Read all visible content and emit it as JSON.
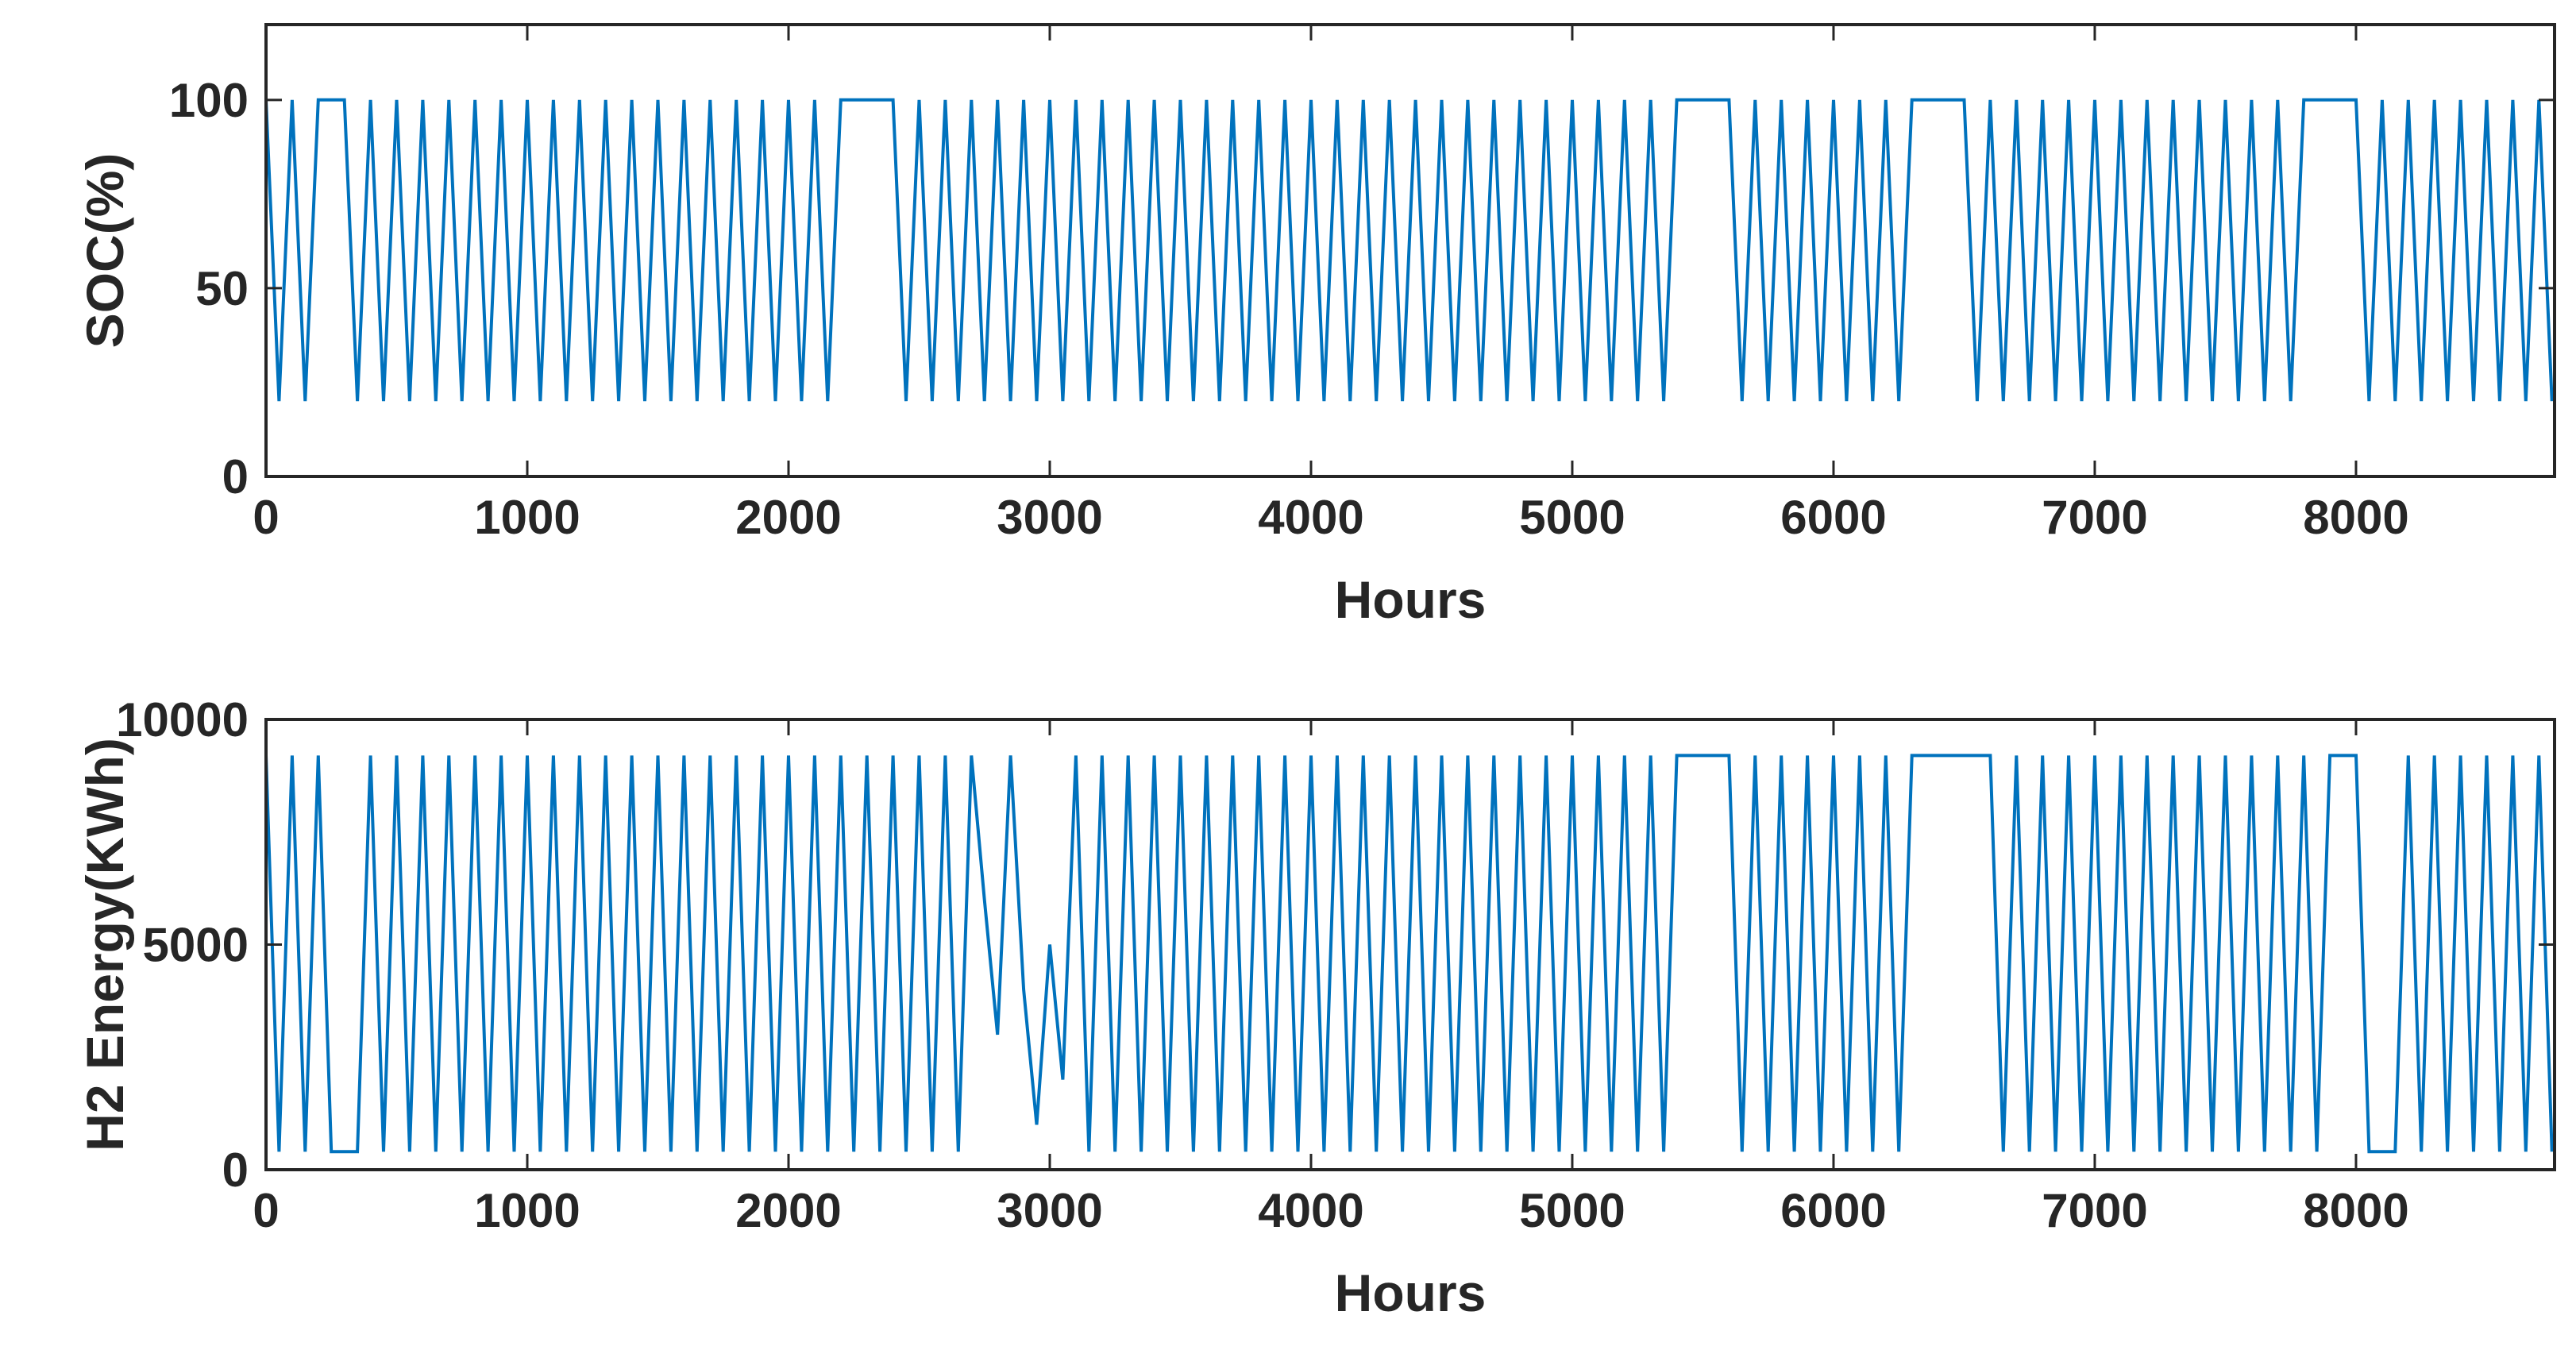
{
  "chart_data": [
    {
      "type": "line",
      "xlabel": "Hours",
      "ylabel": "SOC(%)",
      "color": "#0072bd",
      "xlim": [
        0,
        8760
      ],
      "xticks": [
        0,
        1000,
        2000,
        3000,
        4000,
        5000,
        6000,
        7000,
        8000
      ],
      "ylim": [
        0,
        120
      ],
      "yticks": [
        0,
        50,
        100
      ],
      "x": [
        0,
        50,
        100,
        150,
        200,
        250,
        300,
        350,
        400,
        450,
        500,
        550,
        600,
        650,
        700,
        750,
        800,
        850,
        900,
        950,
        1000,
        1050,
        1100,
        1150,
        1200,
        1250,
        1300,
        1350,
        1400,
        1450,
        1500,
        1550,
        1600,
        1650,
        1700,
        1750,
        1800,
        1850,
        1900,
        1950,
        2000,
        2050,
        2100,
        2150,
        2200,
        2250,
        2300,
        2350,
        2400,
        2450,
        2500,
        2550,
        2600,
        2650,
        2700,
        2750,
        2800,
        2850,
        2900,
        2950,
        3000,
        3050,
        3100,
        3150,
        3200,
        3250,
        3300,
        3350,
        3400,
        3450,
        3500,
        3550,
        3600,
        3650,
        3700,
        3750,
        3800,
        3850,
        3900,
        3950,
        4000,
        4050,
        4100,
        4150,
        4200,
        4250,
        4300,
        4350,
        4400,
        4450,
        4500,
        4550,
        4600,
        4650,
        4700,
        4750,
        4800,
        4850,
        4900,
        4950,
        5000,
        5050,
        5100,
        5150,
        5200,
        5250,
        5300,
        5350,
        5400,
        5450,
        5500,
        5550,
        5600,
        5650,
        5700,
        5750,
        5800,
        5850,
        5900,
        5950,
        6000,
        6050,
        6100,
        6150,
        6200,
        6250,
        6300,
        6350,
        6400,
        6450,
        6500,
        6550,
        6600,
        6650,
        6700,
        6750,
        6800,
        6850,
        6900,
        6950,
        7000,
        7050,
        7100,
        7150,
        7200,
        7250,
        7300,
        7350,
        7400,
        7450,
        7500,
        7550,
        7600,
        7650,
        7700,
        7750,
        7800,
        7850,
        7900,
        7950,
        8000,
        8050,
        8100,
        8150,
        8200,
        8250,
        8300,
        8350,
        8400,
        8450,
        8500,
        8550,
        8600,
        8650,
        8700,
        8750
      ],
      "values": [
        100,
        20,
        100,
        20,
        100,
        100,
        100,
        20,
        100,
        20,
        100,
        20,
        100,
        20,
        100,
        20,
        100,
        20,
        100,
        20,
        100,
        20,
        100,
        20,
        100,
        20,
        100,
        20,
        100,
        20,
        100,
        20,
        100,
        20,
        100,
        20,
        100,
        20,
        100,
        20,
        100,
        20,
        100,
        20,
        100,
        100,
        100,
        100,
        100,
        20,
        100,
        20,
        100,
        20,
        100,
        20,
        100,
        20,
        100,
        20,
        100,
        20,
        100,
        20,
        100,
        20,
        100,
        20,
        100,
        20,
        100,
        20,
        100,
        20,
        100,
        20,
        100,
        20,
        100,
        20,
        100,
        20,
        100,
        20,
        100,
        20,
        100,
        20,
        100,
        20,
        100,
        20,
        100,
        20,
        100,
        20,
        100,
        20,
        100,
        20,
        100,
        20,
        100,
        20,
        100,
        20,
        100,
        20,
        100,
        100,
        100,
        100,
        100,
        20,
        100,
        20,
        100,
        20,
        100,
        20,
        100,
        20,
        100,
        20,
        100,
        20,
        100,
        100,
        100,
        100,
        100,
        20,
        100,
        20,
        100,
        20,
        100,
        20,
        100,
        20,
        100,
        20,
        100,
        20,
        100,
        20,
        100,
        20,
        100,
        20,
        100,
        20,
        100,
        20,
        100,
        20,
        100,
        100,
        100,
        100,
        100,
        20,
        100,
        20,
        100,
        20,
        100,
        20,
        100,
        20,
        100,
        20,
        100,
        20,
        100,
        20
      ]
    },
    {
      "type": "line",
      "xlabel": "Hours",
      "ylabel": "H2 Energy(KWh)",
      "color": "#0072bd",
      "xlim": [
        0,
        8760
      ],
      "xticks": [
        0,
        1000,
        2000,
        3000,
        4000,
        5000,
        6000,
        7000,
        8000
      ],
      "ylim": [
        0,
        10000
      ],
      "yticks": [
        0,
        5000,
        10000
      ],
      "x": [
        0,
        50,
        100,
        150,
        200,
        250,
        300,
        350,
        400,
        450,
        500,
        550,
        600,
        650,
        700,
        750,
        800,
        850,
        900,
        950,
        1000,
        1050,
        1100,
        1150,
        1200,
        1250,
        1300,
        1350,
        1400,
        1450,
        1500,
        1550,
        1600,
        1650,
        1700,
        1750,
        1800,
        1850,
        1900,
        1950,
        2000,
        2050,
        2100,
        2150,
        2200,
        2250,
        2300,
        2350,
        2400,
        2450,
        2500,
        2550,
        2600,
        2650,
        2700,
        2750,
        2800,
        2850,
        2900,
        2950,
        3000,
        3050,
        3100,
        3150,
        3200,
        3250,
        3300,
        3350,
        3400,
        3450,
        3500,
        3550,
        3600,
        3650,
        3700,
        3750,
        3800,
        3850,
        3900,
        3950,
        4000,
        4050,
        4100,
        4150,
        4200,
        4250,
        4300,
        4350,
        4400,
        4450,
        4500,
        4550,
        4600,
        4650,
        4700,
        4750,
        4800,
        4850,
        4900,
        4950,
        5000,
        5050,
        5100,
        5150,
        5200,
        5250,
        5300,
        5350,
        5400,
        5450,
        5500,
        5550,
        5600,
        5650,
        5700,
        5750,
        5800,
        5850,
        5900,
        5950,
        6000,
        6050,
        6100,
        6150,
        6200,
        6250,
        6300,
        6350,
        6400,
        6450,
        6500,
        6550,
        6600,
        6650,
        6700,
        6750,
        6800,
        6850,
        6900,
        6950,
        7000,
        7050,
        7100,
        7150,
        7200,
        7250,
        7300,
        7350,
        7400,
        7450,
        7500,
        7550,
        7600,
        7650,
        7700,
        7750,
        7800,
        7850,
        7900,
        7950,
        8000,
        8050,
        8100,
        8150,
        8200,
        8250,
        8300,
        8350,
        8400,
        8450,
        8500,
        8550,
        8600,
        8650,
        8700,
        8750
      ],
      "values": [
        9200,
        400,
        9200,
        400,
        9200,
        400,
        400,
        400,
        9200,
        400,
        9200,
        400,
        9200,
        400,
        9200,
        400,
        9200,
        400,
        9200,
        400,
        9200,
        400,
        9200,
        400,
        9200,
        400,
        9200,
        400,
        9200,
        400,
        9200,
        400,
        9200,
        400,
        9200,
        400,
        9200,
        400,
        9200,
        400,
        9200,
        400,
        9200,
        400,
        9200,
        400,
        9200,
        400,
        9200,
        400,
        9200,
        400,
        9200,
        400,
        9200,
        6000,
        3000,
        9200,
        4000,
        1000,
        5000,
        2000,
        9200,
        400,
        9200,
        400,
        9200,
        400,
        9200,
        400,
        9200,
        400,
        9200,
        400,
        9200,
        400,
        9200,
        400,
        9200,
        400,
        9200,
        400,
        9200,
        400,
        9200,
        400,
        9200,
        400,
        9200,
        400,
        9200,
        400,
        9200,
        400,
        9200,
        400,
        9200,
        400,
        9200,
        400,
        9200,
        400,
        9200,
        400,
        9200,
        400,
        9200,
        400,
        9200,
        9200,
        9200,
        9200,
        9200,
        400,
        9200,
        400,
        9200,
        400,
        9200,
        400,
        9200,
        400,
        9200,
        400,
        9200,
        400,
        9200,
        9200,
        9200,
        9200,
        9200,
        9200,
        9200,
        400,
        9200,
        400,
        9200,
        400,
        9200,
        400,
        9200,
        400,
        9200,
        400,
        9200,
        400,
        9200,
        400,
        9200,
        400,
        9200,
        400,
        9200,
        400,
        9200,
        400,
        9200,
        400,
        9200,
        9200,
        9200,
        400,
        400,
        400,
        9200,
        400,
        9200,
        400,
        9200,
        400,
        9200,
        400,
        9200,
        400,
        9200,
        400
      ]
    }
  ]
}
